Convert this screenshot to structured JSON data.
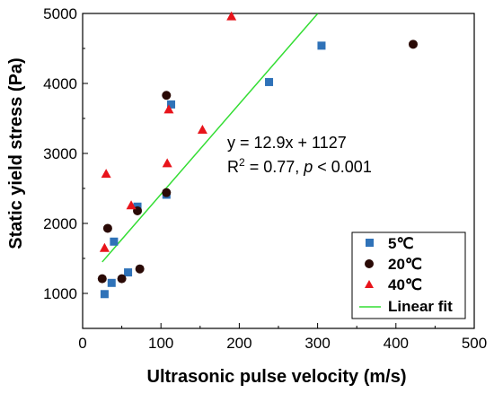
{
  "chart_data": {
    "type": "scatter",
    "xlabel": "Ultrasonic pulse velocity (m/s)",
    "ylabel": "Static yield stress (Pa)",
    "xlim": [
      0,
      500
    ],
    "ylim": [
      500,
      5000
    ],
    "xticks": [
      0,
      100,
      200,
      300,
      400,
      500
    ],
    "yticks": [
      1000,
      2000,
      3000,
      4000,
      5000
    ],
    "x_tick_labels": [
      "0",
      "100",
      "200",
      "300",
      "400",
      "500"
    ],
    "y_tick_labels": [
      "1000",
      "2000",
      "3000",
      "4000",
      "5000"
    ],
    "grid": false,
    "legend_position": "bottom-right",
    "series": [
      {
        "name": "5℃",
        "marker": "square",
        "color": "#2f72b8",
        "x": [
          28,
          37,
          40,
          58,
          70,
          107,
          113,
          238,
          305
        ],
        "y": [
          990,
          1150,
          1740,
          1300,
          2240,
          2410,
          3700,
          4020,
          4540
        ]
      },
      {
        "name": "20℃",
        "marker": "circle",
        "color": "#2a0a06",
        "x": [
          25,
          32,
          50,
          70,
          73,
          107,
          107,
          422
        ],
        "y": [
          1210,
          1930,
          1210,
          2180,
          1350,
          2440,
          3830,
          4560
        ]
      },
      {
        "name": "40℃",
        "marker": "triangle",
        "color": "#e8141b",
        "x": [
          28,
          30,
          62,
          108,
          110,
          153,
          190
        ],
        "y": [
          1650,
          2710,
          2260,
          2860,
          3630,
          3340,
          4960
        ]
      }
    ],
    "fit": {
      "name": "Linear fit",
      "color": "#33dd33",
      "slope": 12.9,
      "intercept": 1127,
      "x_range": [
        25,
        300
      ]
    },
    "annotation": {
      "equation": "y = 12.9x + 1127",
      "r2_prefix": "R",
      "r2_sup": "2",
      "r2_middle": " = 0.77, ",
      "p_symbol": "p",
      "p_rest": " < 0.001"
    }
  }
}
